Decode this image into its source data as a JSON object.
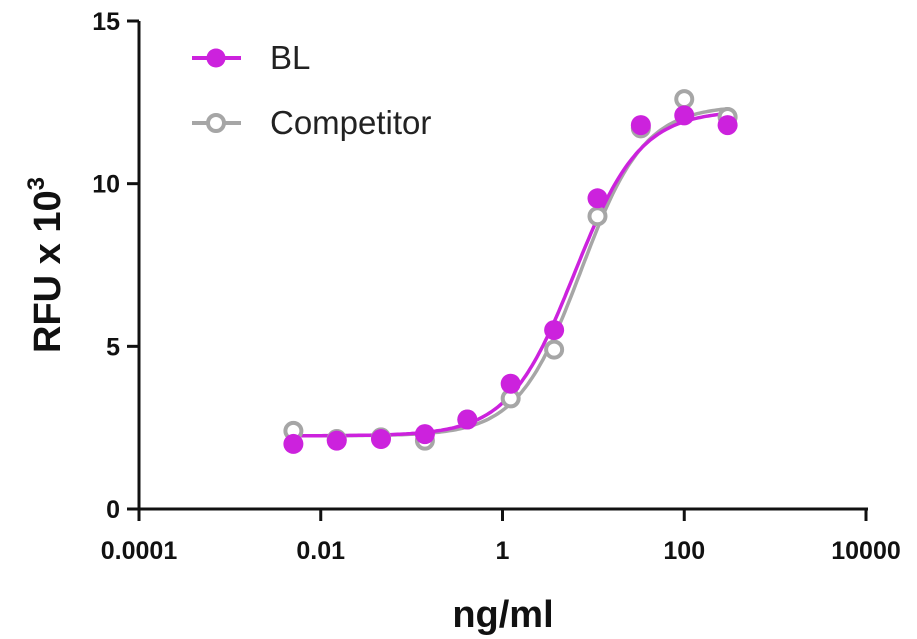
{
  "chart_data": {
    "type": "scatter",
    "xscale": "log",
    "xlim": [
      0.0001,
      10000
    ],
    "ylim": [
      0,
      15
    ],
    "xticks": [
      {
        "value": 0.0001,
        "label": "0.0001"
      },
      {
        "value": 0.01,
        "label": "0.01"
      },
      {
        "value": 1,
        "label": "1"
      },
      {
        "value": 100,
        "label": "100"
      },
      {
        "value": 10000,
        "label": "10000"
      }
    ],
    "yticks": [
      {
        "value": 0,
        "label": "0"
      },
      {
        "value": 5,
        "label": "5"
      },
      {
        "value": 10,
        "label": "10"
      },
      {
        "value": 15,
        "label": "15"
      }
    ],
    "xlabel": "ng/ml",
    "ylabel_main": "RFU x 10",
    "ylabel_sup": "3",
    "legend_position": "top-left",
    "grid": false,
    "fit": "sigmoidal curve",
    "series": [
      {
        "name": "BL",
        "color": "#cc22dd",
        "marker": "filled-circle",
        "x": [
          0.005,
          0.015,
          0.046,
          0.14,
          0.41,
          1.23,
          3.7,
          11.1,
          33.3,
          100,
          300
        ],
        "y": [
          2.0,
          2.1,
          2.15,
          2.3,
          2.75,
          3.85,
          5.5,
          9.55,
          11.8,
          12.1,
          11.8
        ],
        "fit": {
          "bottom": 2.25,
          "top": 12.25,
          "ec50": 6.2,
          "hill": 1.2
        }
      },
      {
        "name": "Competitor",
        "color": "#a6a6a6",
        "marker": "open-circle",
        "x": [
          0.005,
          0.015,
          0.046,
          0.14,
          0.41,
          1.23,
          3.7,
          11.1,
          33.3,
          100,
          300
        ],
        "y": [
          2.4,
          2.15,
          2.2,
          2.1,
          2.75,
          3.4,
          4.9,
          9.0,
          11.7,
          12.6,
          12.05
        ],
        "fit": {
          "bottom": 2.25,
          "top": 12.4,
          "ec50": 7.3,
          "hill": 1.25
        }
      }
    ]
  }
}
